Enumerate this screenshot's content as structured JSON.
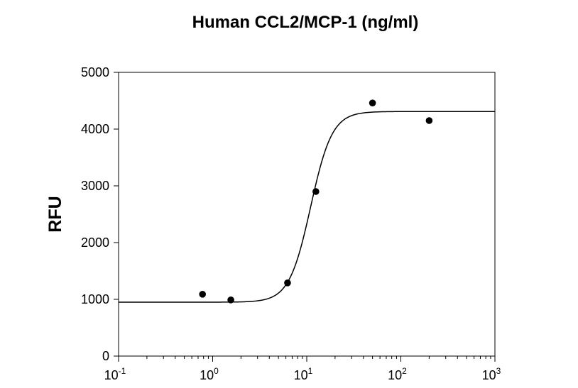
{
  "chart_data": {
    "type": "scatter",
    "title": "Human CCL2/MCP-1 (ng/ml)",
    "xlabel": "",
    "ylabel": "RFU",
    "xscale": "log",
    "xlim": [
      0.1,
      1000
    ],
    "ylim": [
      0,
      5000
    ],
    "grid": false,
    "x_ticks": [
      {
        "base": "10",
        "exp": "-1",
        "value": 0.1
      },
      {
        "base": "10",
        "exp": "0",
        "value": 1
      },
      {
        "base": "10",
        "exp": "1",
        "value": 10
      },
      {
        "base": "10",
        "exp": "2",
        "value": 100
      },
      {
        "base": "10",
        "exp": "3",
        "value": 1000
      }
    ],
    "y_ticks": [
      "0",
      "1000",
      "2000",
      "3000",
      "4000",
      "5000"
    ],
    "points": [
      {
        "x": 0.78,
        "y": 1090
      },
      {
        "x": 1.56,
        "y": 990
      },
      {
        "x": 6.25,
        "y": 1290
      },
      {
        "x": 12.5,
        "y": 2900
      },
      {
        "x": 50,
        "y": 4460
      },
      {
        "x": 200,
        "y": 4150
      }
    ],
    "fit": {
      "model": "4PL",
      "bottom": 950,
      "top": 4310,
      "ec50": 11,
      "hill": 3.8
    },
    "colors": {
      "marker": "#000000",
      "line": "#000000"
    }
  }
}
